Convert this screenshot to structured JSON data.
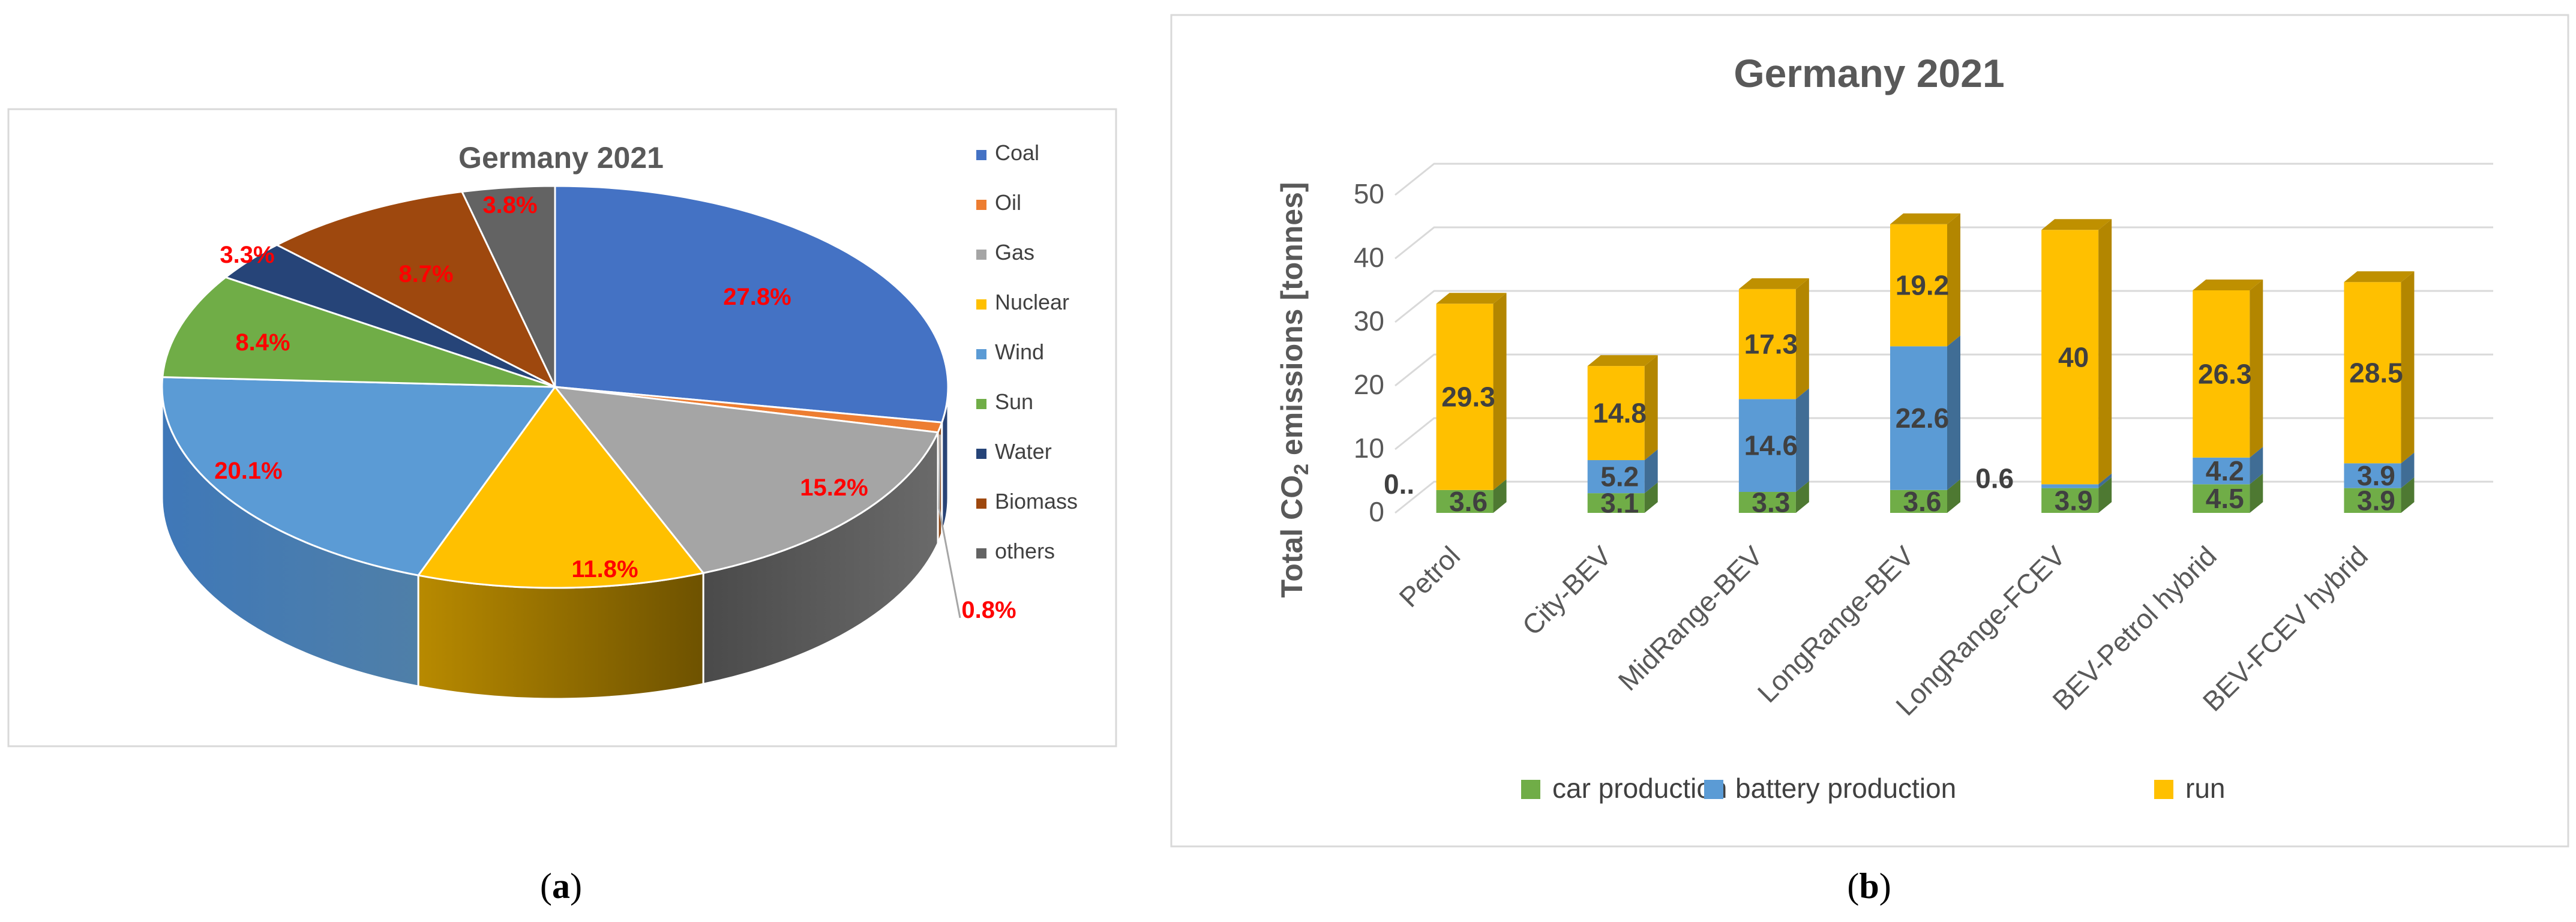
{
  "chart_data": [
    {
      "type": "pie",
      "panel_label": "a",
      "title": "Germany 2021",
      "categories": [
        "Coal",
        "Oil",
        "Gas",
        "Nuclear",
        "Wind",
        "Sun",
        "Water",
        "Biomass",
        "others"
      ],
      "values": [
        27.8,
        0.8,
        15.2,
        11.8,
        20.1,
        8.4,
        3.3,
        8.7,
        3.8
      ],
      "data_labels": [
        "27.8%",
        "0.8%",
        "15.2%",
        "11.8%",
        "20.1%",
        "8.4%",
        "3.3%",
        "8.7%",
        "3.8%"
      ],
      "colors": [
        "#4472c4",
        "#ed7d31",
        "#a5a5a5",
        "#ffc000",
        "#5b9bd5",
        "#70ad47",
        "#264478",
        "#9e480e",
        "#636363"
      ],
      "legend_position": "right"
    },
    {
      "type": "bar",
      "stacked": true,
      "panel_label": "b",
      "title": "Germany 2021",
      "ylabel_parts": [
        "Total  CO",
        "2",
        " emissions [tonnes]"
      ],
      "xlabel": "",
      "ylim": [
        0,
        50
      ],
      "yticks": [
        "0",
        "10",
        "20",
        "30",
        "40",
        "50"
      ],
      "categories": [
        "Petrol",
        "City-BEV",
        "MidRange-BEV",
        "LongRange-BEV",
        "LongRange-FCEV",
        "BEV-Petrol hybrid",
        "BEV-FCEV hybrid"
      ],
      "series": [
        {
          "name": "car production",
          "color": "#70ad47",
          "values": [
            3.6,
            3.1,
            3.3,
            3.6,
            3.9,
            4.5,
            3.9
          ],
          "labels": [
            "3.6",
            "3.1",
            "3.3",
            "3.6",
            "3.9",
            "4.5",
            "3.9"
          ]
        },
        {
          "name": "battery  production",
          "color": "#5b9bd5",
          "values": [
            0,
            5.2,
            14.6,
            22.6,
            0.6,
            4.2,
            3.9
          ],
          "labels": [
            "0..",
            "5.2",
            "14.6",
            "22.6",
            "0.6",
            "4.2",
            "3.9"
          ]
        },
        {
          "name": "run",
          "color": "#ffc000",
          "values": [
            29.3,
            14.8,
            17.3,
            19.2,
            40,
            26.3,
            28.5
          ],
          "labels": [
            "29.3",
            "14.8",
            "17.3",
            "19.2",
            "40",
            "26.3",
            "28.5"
          ]
        }
      ],
      "legend_position": "bottom"
    }
  ]
}
